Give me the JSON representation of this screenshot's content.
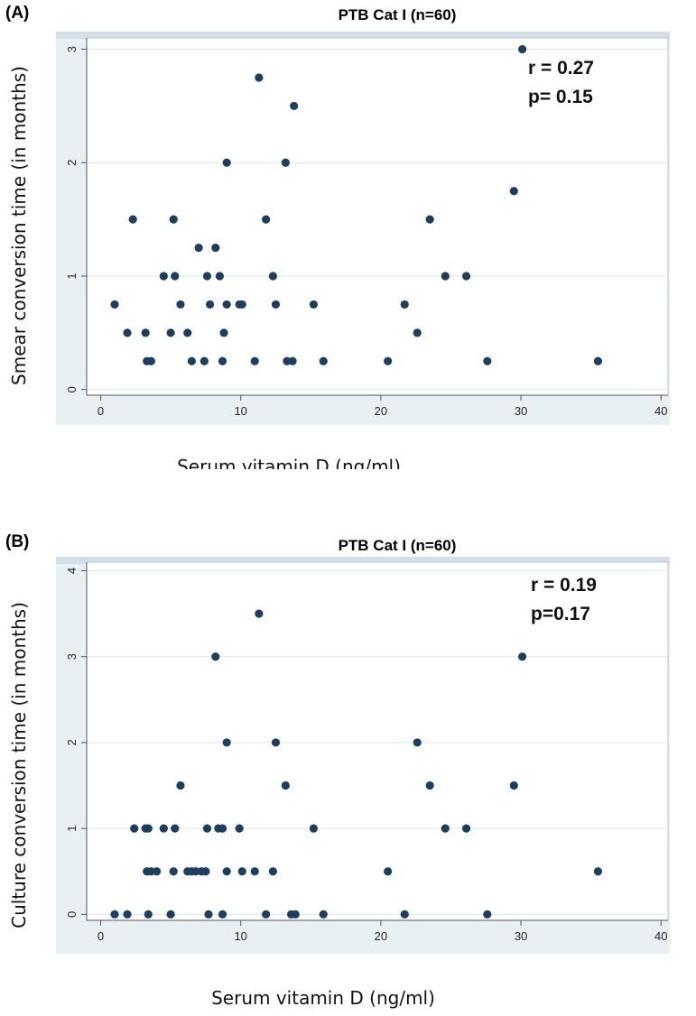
{
  "panels": [
    {
      "label": "(A)",
      "title": "PTB Cat I (n=60)",
      "stats": [
        "r = 0.27",
        "p= 0.15"
      ],
      "xlabel": "Serum vitamin D (ng/ml)",
      "ylabel": "Smear conversion time (in months)"
    },
    {
      "label": "(B)",
      "title": "PTB Cat I (n=60)",
      "stats": [
        "r = 0.19",
        "p=0.17"
      ],
      "xlabel": "Serum vitamin D (ng/ml)",
      "ylabel": "Culture conversion time (in months)"
    }
  ],
  "colors": {
    "marker": "#1f3d5c",
    "plot_border": "#b8c8d2",
    "grid": "#d9e6ec",
    "outer_bg": "#e9f0f3",
    "title_bar": "#d2dfe6"
  },
  "chart_data": [
    {
      "type": "scatter",
      "title": "PTB Cat I (n=60)",
      "xlabel": "Serum vitamin D (ng/ml)",
      "ylabel": "Smear conversion time (in months)",
      "xlim": [
        -1,
        40.5
      ],
      "ylim": [
        -0.05,
        3.1
      ],
      "xticks": [
        0,
        10,
        20,
        30,
        40
      ],
      "yticks": [
        0,
        1,
        2,
        3
      ],
      "grid": true,
      "annotation": [
        "r = 0.27",
        "p= 0.15"
      ],
      "points": [
        [
          1.0,
          0.75
        ],
        [
          1.9,
          0.5
        ],
        [
          2.3,
          1.5
        ],
        [
          3.2,
          0.5
        ],
        [
          3.3,
          0.25
        ],
        [
          3.6,
          0.25
        ],
        [
          4.5,
          1.0
        ],
        [
          5.0,
          0.5
        ],
        [
          5.2,
          1.5
        ],
        [
          5.3,
          1.0
        ],
        [
          5.7,
          0.75
        ],
        [
          6.2,
          0.5
        ],
        [
          6.5,
          0.25
        ],
        [
          7.0,
          1.25
        ],
        [
          7.4,
          0.25
        ],
        [
          7.6,
          1.0
        ],
        [
          7.8,
          0.75
        ],
        [
          8.2,
          1.25
        ],
        [
          8.5,
          1.0
        ],
        [
          8.7,
          0.25
        ],
        [
          8.8,
          0.5
        ],
        [
          9.0,
          0.75
        ],
        [
          9.0,
          2.0
        ],
        [
          9.9,
          0.75
        ],
        [
          10.1,
          0.75
        ],
        [
          11.0,
          0.25
        ],
        [
          11.3,
          2.75
        ],
        [
          11.8,
          1.5
        ],
        [
          12.3,
          1.0
        ],
        [
          12.5,
          0.75
        ],
        [
          13.2,
          2.0
        ],
        [
          13.3,
          0.25
        ],
        [
          13.7,
          0.25
        ],
        [
          13.8,
          2.5
        ],
        [
          15.2,
          0.75
        ],
        [
          15.9,
          0.25
        ],
        [
          20.5,
          0.25
        ],
        [
          21.7,
          0.75
        ],
        [
          22.6,
          0.5
        ],
        [
          23.5,
          1.5
        ],
        [
          24.6,
          1.0
        ],
        [
          26.1,
          1.0
        ],
        [
          27.6,
          0.25
        ],
        [
          29.5,
          1.75
        ],
        [
          30.1,
          3.0
        ],
        [
          35.5,
          0.25
        ]
      ]
    },
    {
      "type": "scatter",
      "title": "PTB Cat I (n=60)",
      "xlabel": "Serum vitamin D (ng/ml)",
      "ylabel": "Culture conversion time (in months)",
      "xlim": [
        -1,
        40.5
      ],
      "ylim": [
        -0.07,
        4.1
      ],
      "xticks": [
        0,
        10,
        20,
        30,
        40
      ],
      "yticks": [
        0,
        1,
        2,
        3,
        4
      ],
      "grid": true,
      "annotation": [
        "r = 0.19",
        "p=0.17"
      ],
      "points": [
        [
          1.0,
          0.0
        ],
        [
          1.9,
          0.0
        ],
        [
          2.4,
          1.0
        ],
        [
          3.2,
          1.0
        ],
        [
          3.3,
          0.5
        ],
        [
          3.4,
          1.0
        ],
        [
          3.6,
          0.5
        ],
        [
          3.4,
          0.0
        ],
        [
          4.0,
          0.5
        ],
        [
          4.5,
          1.0
        ],
        [
          5.0,
          0.0
        ],
        [
          5.2,
          0.5
        ],
        [
          5.3,
          1.0
        ],
        [
          5.7,
          1.5
        ],
        [
          6.2,
          0.5
        ],
        [
          6.5,
          0.5
        ],
        [
          6.8,
          0.5
        ],
        [
          7.2,
          0.5
        ],
        [
          7.5,
          0.5
        ],
        [
          7.6,
          1.0
        ],
        [
          7.7,
          0.0
        ],
        [
          8.2,
          3.0
        ],
        [
          8.4,
          1.0
        ],
        [
          8.7,
          1.0
        ],
        [
          8.7,
          0.0
        ],
        [
          9.0,
          0.5
        ],
        [
          9.0,
          2.0
        ],
        [
          9.9,
          1.0
        ],
        [
          10.1,
          0.5
        ],
        [
          11.0,
          0.5
        ],
        [
          11.3,
          3.5
        ],
        [
          11.8,
          0.0
        ],
        [
          12.3,
          0.5
        ],
        [
          12.5,
          2.0
        ],
        [
          13.2,
          1.5
        ],
        [
          13.6,
          0.0
        ],
        [
          13.9,
          0.0
        ],
        [
          15.2,
          1.0
        ],
        [
          15.9,
          0.0
        ],
        [
          20.5,
          0.5
        ],
        [
          21.7,
          0.0
        ],
        [
          22.6,
          2.0
        ],
        [
          23.5,
          1.5
        ],
        [
          24.6,
          1.0
        ],
        [
          26.1,
          1.0
        ],
        [
          27.6,
          0.0
        ],
        [
          29.5,
          1.5
        ],
        [
          30.1,
          3.0
        ],
        [
          35.5,
          0.5
        ]
      ]
    }
  ]
}
